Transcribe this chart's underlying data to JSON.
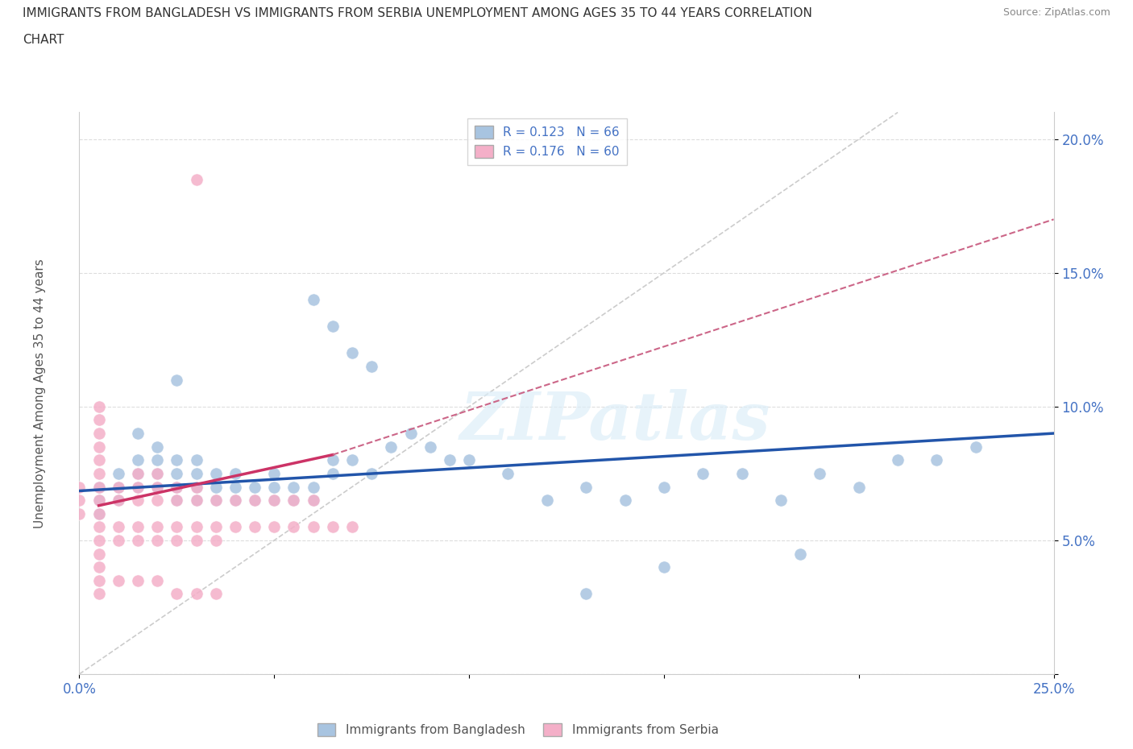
{
  "title_line1": "IMMIGRANTS FROM BANGLADESH VS IMMIGRANTS FROM SERBIA UNEMPLOYMENT AMONG AGES 35 TO 44 YEARS CORRELATION",
  "title_line2": "CHART",
  "source_text": "Source: ZipAtlas.com",
  "ylabel": "Unemployment Among Ages 35 to 44 years",
  "xlim": [
    0.0,
    0.25
  ],
  "ylim": [
    0.0,
    0.21
  ],
  "watermark_text": "ZIPatlas",
  "bangladesh_color": "#a8c4e0",
  "serbia_color": "#f4afc8",
  "bangladesh_trend_color": "#2255aa",
  "serbia_trend_solid_color": "#cc3366",
  "serbia_trend_dashed_color": "#cc6688",
  "bangladesh_scatter": [
    [
      0.005,
      0.065
    ],
    [
      0.005,
      0.07
    ],
    [
      0.005,
      0.06
    ],
    [
      0.01,
      0.065
    ],
    [
      0.01,
      0.07
    ],
    [
      0.01,
      0.075
    ],
    [
      0.015,
      0.07
    ],
    [
      0.015,
      0.075
    ],
    [
      0.015,
      0.08
    ],
    [
      0.015,
      0.09
    ],
    [
      0.02,
      0.07
    ],
    [
      0.02,
      0.075
    ],
    [
      0.02,
      0.08
    ],
    [
      0.02,
      0.085
    ],
    [
      0.025,
      0.065
    ],
    [
      0.025,
      0.07
    ],
    [
      0.025,
      0.075
    ],
    [
      0.025,
      0.08
    ],
    [
      0.03,
      0.065
    ],
    [
      0.03,
      0.07
    ],
    [
      0.03,
      0.075
    ],
    [
      0.03,
      0.08
    ],
    [
      0.035,
      0.065
    ],
    [
      0.035,
      0.07
    ],
    [
      0.035,
      0.075
    ],
    [
      0.04,
      0.065
    ],
    [
      0.04,
      0.07
    ],
    [
      0.04,
      0.075
    ],
    [
      0.045,
      0.065
    ],
    [
      0.045,
      0.07
    ],
    [
      0.05,
      0.065
    ],
    [
      0.05,
      0.07
    ],
    [
      0.05,
      0.075
    ],
    [
      0.055,
      0.065
    ],
    [
      0.055,
      0.07
    ],
    [
      0.06,
      0.065
    ],
    [
      0.06,
      0.07
    ],
    [
      0.065,
      0.075
    ],
    [
      0.065,
      0.08
    ],
    [
      0.07,
      0.08
    ],
    [
      0.075,
      0.075
    ],
    [
      0.08,
      0.085
    ],
    [
      0.085,
      0.09
    ],
    [
      0.09,
      0.085
    ],
    [
      0.095,
      0.08
    ],
    [
      0.1,
      0.08
    ],
    [
      0.11,
      0.075
    ],
    [
      0.12,
      0.065
    ],
    [
      0.13,
      0.07
    ],
    [
      0.14,
      0.065
    ],
    [
      0.15,
      0.07
    ],
    [
      0.16,
      0.075
    ],
    [
      0.17,
      0.075
    ],
    [
      0.18,
      0.065
    ],
    [
      0.19,
      0.075
    ],
    [
      0.2,
      0.07
    ],
    [
      0.21,
      0.08
    ],
    [
      0.22,
      0.08
    ],
    [
      0.23,
      0.085
    ],
    [
      0.06,
      0.14
    ],
    [
      0.065,
      0.13
    ],
    [
      0.07,
      0.12
    ],
    [
      0.075,
      0.115
    ],
    [
      0.025,
      0.11
    ],
    [
      0.13,
      0.03
    ],
    [
      0.15,
      0.04
    ],
    [
      0.185,
      0.045
    ]
  ],
  "serbia_scatter": [
    [
      0.005,
      0.065
    ],
    [
      0.005,
      0.07
    ],
    [
      0.005,
      0.075
    ],
    [
      0.005,
      0.08
    ],
    [
      0.005,
      0.085
    ],
    [
      0.005,
      0.09
    ],
    [
      0.005,
      0.095
    ],
    [
      0.005,
      0.1
    ],
    [
      0.005,
      0.055
    ],
    [
      0.005,
      0.06
    ],
    [
      0.01,
      0.065
    ],
    [
      0.01,
      0.07
    ],
    [
      0.015,
      0.065
    ],
    [
      0.015,
      0.07
    ],
    [
      0.015,
      0.075
    ],
    [
      0.02,
      0.065
    ],
    [
      0.02,
      0.07
    ],
    [
      0.02,
      0.075
    ],
    [
      0.025,
      0.065
    ],
    [
      0.025,
      0.07
    ],
    [
      0.03,
      0.065
    ],
    [
      0.03,
      0.07
    ],
    [
      0.035,
      0.065
    ],
    [
      0.04,
      0.065
    ],
    [
      0.045,
      0.065
    ],
    [
      0.05,
      0.065
    ],
    [
      0.055,
      0.065
    ],
    [
      0.06,
      0.065
    ],
    [
      0.005,
      0.05
    ],
    [
      0.005,
      0.045
    ],
    [
      0.005,
      0.04
    ],
    [
      0.01,
      0.05
    ],
    [
      0.01,
      0.055
    ],
    [
      0.015,
      0.05
    ],
    [
      0.015,
      0.055
    ],
    [
      0.02,
      0.055
    ],
    [
      0.02,
      0.05
    ],
    [
      0.025,
      0.055
    ],
    [
      0.025,
      0.05
    ],
    [
      0.03,
      0.055
    ],
    [
      0.03,
      0.05
    ],
    [
      0.035,
      0.055
    ],
    [
      0.035,
      0.05
    ],
    [
      0.04,
      0.055
    ],
    [
      0.045,
      0.055
    ],
    [
      0.05,
      0.055
    ],
    [
      0.055,
      0.055
    ],
    [
      0.06,
      0.055
    ],
    [
      0.005,
      0.035
    ],
    [
      0.005,
      0.03
    ],
    [
      0.01,
      0.035
    ],
    [
      0.015,
      0.035
    ],
    [
      0.02,
      0.035
    ],
    [
      0.025,
      0.03
    ],
    [
      0.03,
      0.03
    ],
    [
      0.035,
      0.03
    ],
    [
      0.0,
      0.065
    ],
    [
      0.0,
      0.07
    ],
    [
      0.0,
      0.06
    ],
    [
      0.065,
      0.055
    ],
    [
      0.07,
      0.055
    ],
    [
      0.03,
      0.185
    ]
  ],
  "bangladesh_trend": [
    0.0,
    0.0685,
    0.25,
    0.09
  ],
  "serbia_trend_solid": [
    0.005,
    0.063,
    0.065,
    0.082
  ],
  "serbia_trend_dashed": [
    0.065,
    0.082,
    0.25,
    0.17
  ],
  "diag_line": [
    0.0,
    0.0,
    0.21,
    0.21
  ]
}
